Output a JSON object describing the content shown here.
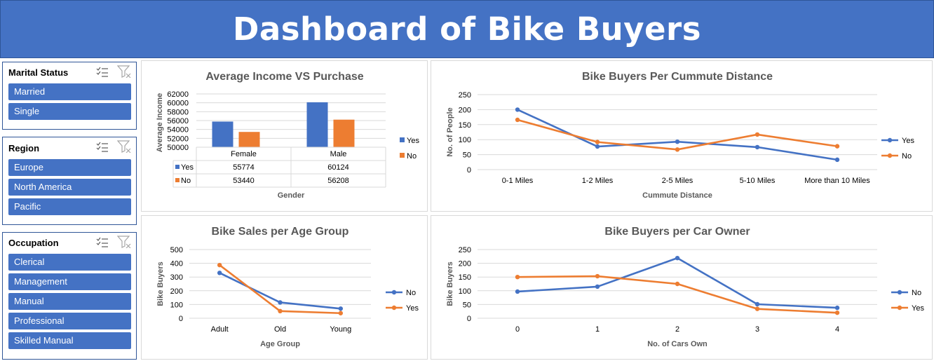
{
  "header": {
    "title": "Dashboard of Bike Buyers"
  },
  "colors": {
    "header_bg": "#4472c4",
    "slicer_item": "#4472c4",
    "series_blue": "#4472c4",
    "series_orange": "#ed7d31",
    "grid": "#d9d9d9"
  },
  "slicers": [
    {
      "title": "Marital Status",
      "items": [
        "Married",
        "Single"
      ]
    },
    {
      "title": "Region",
      "items": [
        "Europe",
        "North America",
        "Pacific"
      ]
    },
    {
      "title": "Occupation",
      "items": [
        "Clerical",
        "Management",
        "Manual",
        "Professional",
        "Skilled Manual"
      ]
    }
  ],
  "slicer_icons": [
    "multi-select-icon",
    "clear-filter-icon"
  ],
  "chart_data": [
    {
      "type": "bar",
      "title": "Average Income VS Purchase",
      "xlabel": "Gender",
      "ylabel": "Average Income",
      "categories": [
        "Female",
        "Male"
      ],
      "series": [
        {
          "name": "Yes",
          "values": [
            55774,
            60124
          ],
          "color": "#4472c4"
        },
        {
          "name": "No",
          "values": [
            53440,
            56208
          ],
          "color": "#ed7d31"
        }
      ],
      "ylim": [
        50000,
        62000
      ],
      "yticks": [
        50000,
        52000,
        54000,
        56000,
        58000,
        60000,
        62000
      ],
      "grid": true,
      "legend": "right",
      "data_table": true
    },
    {
      "type": "line",
      "title": "Bike Buyers Per Cummute Distance",
      "xlabel": "Cummute Distance",
      "ylabel": "No. of People",
      "categories": [
        "0-1 Miles",
        "1-2 Miles",
        "2-5 Miles",
        "5-10 Miles",
        "More than 10 Miles"
      ],
      "series": [
        {
          "name": "Yes",
          "values": [
            200,
            77,
            93,
            75,
            33
          ],
          "color": "#4472c4"
        },
        {
          "name": "No",
          "values": [
            166,
            92,
            67,
            117,
            78
          ],
          "color": "#ed7d31"
        }
      ],
      "ylim": [
        0,
        250
      ],
      "yticks": [
        0,
        50,
        100,
        150,
        200,
        250
      ],
      "grid": true,
      "legend": "right"
    },
    {
      "type": "line",
      "title": "Bike Sales per Age Group",
      "xlabel": "Age Group",
      "ylabel": "Bike Buyers",
      "categories": [
        "Adult",
        "Old",
        "Young"
      ],
      "series": [
        {
          "name": "No",
          "values": [
            330,
            115,
            70
          ],
          "color": "#4472c4"
        },
        {
          "name": "Yes",
          "values": [
            387,
            52,
            37
          ],
          "color": "#ed7d31"
        }
      ],
      "ylim": [
        0,
        500
      ],
      "yticks": [
        0,
        100,
        200,
        300,
        400,
        500
      ],
      "grid": true,
      "legend": "right"
    },
    {
      "type": "line",
      "title": "Bike Buyers per Car Owner",
      "xlabel": "No. of Cars Own",
      "ylabel": "Bike Buyers",
      "categories": [
        "0",
        "1",
        "2",
        "3",
        "4"
      ],
      "series": [
        {
          "name": "No",
          "values": [
            97,
            115,
            219,
            51,
            38
          ],
          "color": "#4472c4"
        },
        {
          "name": "Yes",
          "values": [
            150,
            153,
            125,
            34,
            20
          ],
          "color": "#ed7d31"
        }
      ],
      "ylim": [
        0,
        250
      ],
      "yticks": [
        0,
        50,
        100,
        150,
        200,
        250
      ],
      "grid": true,
      "legend": "right"
    }
  ]
}
